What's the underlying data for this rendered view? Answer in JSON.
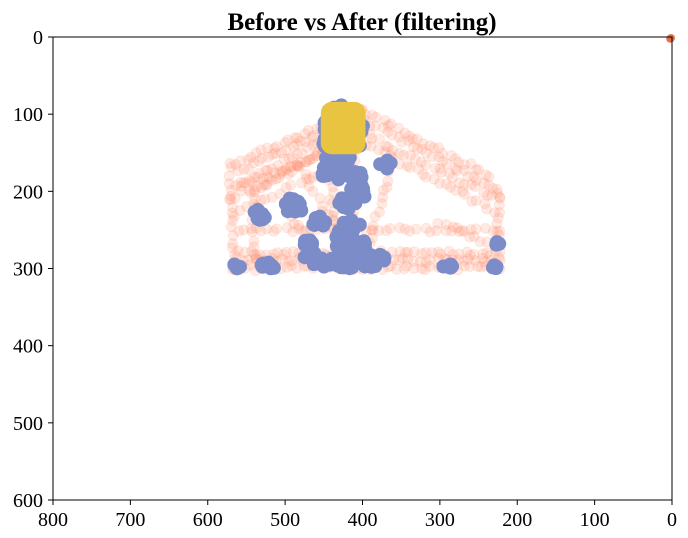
{
  "chart_data": {
    "type": "scatter",
    "title": "Before vs After (filtering)",
    "xlabel": "",
    "ylabel": "",
    "xlim": [
      800,
      0
    ],
    "ylim": [
      600,
      0
    ],
    "x_inverted": true,
    "y_inverted": true,
    "x_ticks": [
      800,
      700,
      600,
      500,
      400,
      300,
      200,
      100,
      0
    ],
    "y_ticks": [
      0,
      100,
      200,
      300,
      400,
      500,
      600
    ],
    "grid": false,
    "legend": "none",
    "colors": {
      "before": "#ff8c69",
      "after": "#7b8cc8",
      "highlight": "#e8c440",
      "outlier": "#e06b45"
    },
    "series": [
      {
        "role": "before",
        "opacity": 0.18,
        "segments": [
          {
            "from": [
              570,
              165
            ],
            "to": [
              400,
              95
            ],
            "n": 26
          },
          {
            "from": [
              560,
              175
            ],
            "to": [
              405,
              100
            ],
            "n": 26
          },
          {
            "from": [
              560,
              190
            ],
            "to": [
              400,
              110
            ],
            "n": 26
          },
          {
            "from": [
              545,
              205
            ],
            "to": [
              410,
              120
            ],
            "n": 24
          },
          {
            "from": [
              400,
              95
            ],
            "to": [
              235,
              180
            ],
            "n": 26
          },
          {
            "from": [
              395,
              110
            ],
            "to": [
              230,
              195
            ],
            "n": 26
          },
          {
            "from": [
              400,
              125
            ],
            "to": [
              225,
              210
            ],
            "n": 26
          },
          {
            "from": [
              395,
              140
            ],
            "to": [
              230,
              225
            ],
            "n": 24
          },
          {
            "from": [
              565,
              195
            ],
            "to": [
              470,
              160
            ],
            "n": 14
          },
          {
            "from": [
              570,
              210
            ],
            "to": [
              450,
              150
            ],
            "n": 16
          },
          {
            "from": [
              565,
              230
            ],
            "to": [
              440,
              170
            ],
            "n": 16
          },
          {
            "from": [
              560,
              280
            ],
            "to": [
              225,
              280
            ],
            "n": 48
          },
          {
            "from": [
              560,
              288
            ],
            "to": [
              225,
              290
            ],
            "n": 48
          },
          {
            "from": [
              565,
              298
            ],
            "to": [
              225,
              300
            ],
            "n": 48
          },
          {
            "from": [
              560,
              250
            ],
            "to": [
              225,
              250
            ],
            "n": 40
          },
          {
            "from": [
              225,
              195
            ],
            "to": [
              225,
              300
            ],
            "n": 14
          },
          {
            "from": [
              570,
              170
            ],
            "to": [
              565,
              300
            ],
            "n": 16
          },
          {
            "from": [
              540,
              200
            ],
            "to": [
              540,
              300
            ],
            "n": 12
          },
          {
            "from": [
              450,
              110
            ],
            "to": [
              430,
              300
            ],
            "n": 26
          },
          {
            "from": [
              410,
              110
            ],
            "to": [
              415,
              300
            ],
            "n": 26
          },
          {
            "from": [
              360,
              160
            ],
            "to": [
              400,
              300
            ],
            "n": 18
          },
          {
            "from": [
              500,
              220
            ],
            "to": [
              460,
              280
            ],
            "n": 10
          },
          {
            "from": [
              300,
              240
            ],
            "to": [
              230,
              270
            ],
            "n": 10
          },
          {
            "from": [
              480,
              170
            ],
            "to": [
              440,
              240
            ],
            "n": 10
          }
        ]
      },
      {
        "role": "after",
        "opacity": 1,
        "clusters": [
          {
            "c": [
              425,
              125
            ],
            "r": [
              28,
              38
            ],
            "n": 80
          },
          {
            "c": [
              438,
              170
            ],
            "r": [
              20,
              16
            ],
            "n": 40
          },
          {
            "c": [
              408,
              182
            ],
            "r": [
              10,
              8
            ],
            "n": 12
          },
          {
            "c": [
              405,
              200
            ],
            "r": [
              12,
              10
            ],
            "n": 16
          },
          {
            "c": [
              370,
              165
            ],
            "r": [
              8,
              6
            ],
            "n": 8
          },
          {
            "c": [
              490,
              218
            ],
            "r": [
              16,
              10
            ],
            "n": 22
          },
          {
            "c": [
              532,
              228
            ],
            "r": [
              8,
              10
            ],
            "n": 12
          },
          {
            "c": [
              455,
              238
            ],
            "r": [
              12,
              8
            ],
            "n": 12
          },
          {
            "c": [
              420,
              213
            ],
            "r": [
              12,
              10
            ],
            "n": 14
          },
          {
            "c": [
              470,
              275
            ],
            "r": [
              10,
              12
            ],
            "n": 14
          },
          {
            "c": [
              415,
              265
            ],
            "r": [
              20,
              28
            ],
            "n": 50
          },
          {
            "c": [
              425,
              292
            ],
            "r": [
              40,
              8
            ],
            "n": 50
          },
          {
            "c": [
              385,
              290
            ],
            "r": [
              15,
              10
            ],
            "n": 16
          },
          {
            "c": [
              562,
              297
            ],
            "r": [
              5,
              4
            ],
            "n": 5
          },
          {
            "c": [
              520,
              296
            ],
            "r": [
              12,
              4
            ],
            "n": 10
          },
          {
            "c": [
              288,
              297
            ],
            "r": [
              8,
              3
            ],
            "n": 6
          },
          {
            "c": [
              230,
              298
            ],
            "r": [
              5,
              3
            ],
            "n": 4
          },
          {
            "c": [
              225,
              268
            ],
            "r": [
              3,
              3
            ],
            "n": 3
          }
        ]
      },
      {
        "role": "highlight",
        "box": {
          "x0": 450,
          "x1": 400,
          "y0": 88,
          "y1": 148
        }
      },
      {
        "role": "outlier",
        "points": [
          [
            0,
            0
          ],
          [
            1,
            1
          ]
        ]
      }
    ]
  }
}
